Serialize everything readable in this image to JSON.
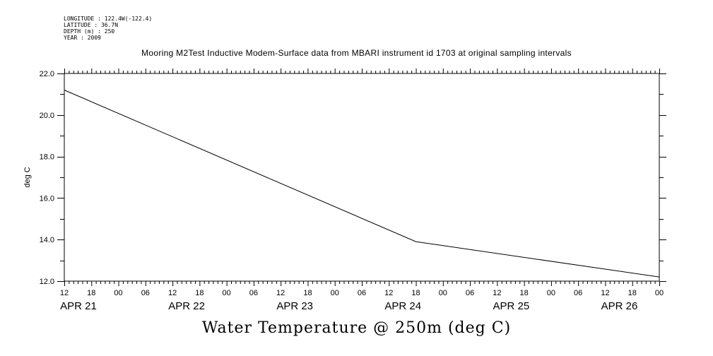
{
  "header": {
    "longitude": "LONGITUDE : 122.4W(-122.4)",
    "latitude": "LATITUDE : 36.7N",
    "depth": "DEPTH (m) : 250",
    "year": "YEAR : 2009"
  },
  "chart_data": {
    "type": "line",
    "title": "Mooring M2Test Inductive Modem-Surface data from MBARI instrument id 1703 at original sampling intervals",
    "xlabel": "Water Temperature @ 250m (deg C)",
    "ylabel": "deg C",
    "ylim": [
      12.0,
      22.0
    ],
    "y_ticks": [
      "12.0",
      "14.0",
      "16.0",
      "18.0",
      "20.0",
      "22.0"
    ],
    "x_unit": "hours since APR 21 00:00",
    "xlim": [
      12,
      144
    ],
    "x_hour_ticks": [
      "12",
      "18",
      "00",
      "06",
      "12",
      "18",
      "00",
      "06",
      "12",
      "18",
      "00",
      "06",
      "12",
      "18",
      "00",
      "06",
      "12",
      "18",
      "00",
      "06",
      "12",
      "18",
      "00"
    ],
    "x_day_labels": [
      "APR 21",
      "APR 22",
      "APR 23",
      "APR 24",
      "APR 25",
      "APR 26"
    ],
    "series": [
      {
        "name": "Water Temperature @ 250m",
        "x": [
          12,
          90,
          144
        ],
        "y": [
          21.2,
          13.9,
          12.2
        ]
      }
    ]
  }
}
